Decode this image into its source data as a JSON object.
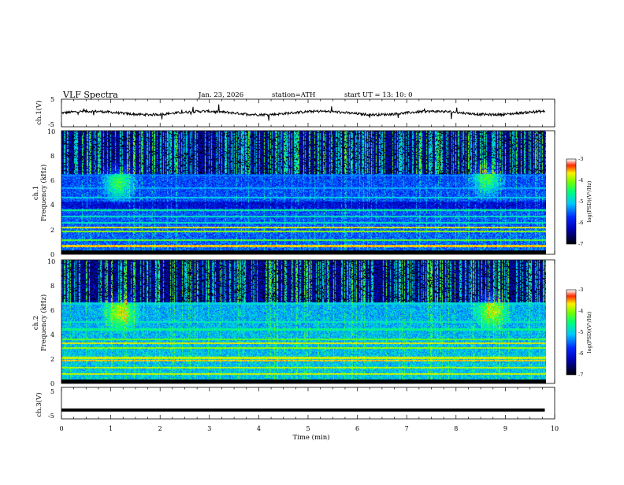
{
  "header": {
    "title": "VLF  Spectra",
    "date": "Jan.  23,  2026",
    "station": "station=ATH",
    "start_time": "start  UT  =   13: 10: 0"
  },
  "chart_data": {
    "type": "heatmap",
    "title": "VLF  Spectra",
    "xlabel": "Time  (min)",
    "xlim": [
      0,
      10
    ],
    "xticks": [
      "0",
      "1",
      "2",
      "3",
      "4",
      "5",
      "6",
      "7",
      "8",
      "9",
      "10"
    ],
    "data_end_min": 9.8,
    "panels": [
      {
        "id": "ch1-waveform",
        "type": "line",
        "ylabel": "ch.1(V)",
        "ylim": [
          -5,
          5
        ],
        "yticks": [
          "5",
          "-5"
        ],
        "baseline_v": 0
      },
      {
        "id": "ch1-spectrogram",
        "type": "heatmap",
        "ylabel_channel": "ch.1",
        "ylabel": "Frequency  (kHz)",
        "ylim": [
          0,
          10
        ],
        "yticks": [
          "0",
          "2",
          "4",
          "6",
          "8",
          "10"
        ],
        "features": [
          {
            "type": "emission",
            "t_center_min": 1.15,
            "f_center_khz": 5.8,
            "width_min": 0.35
          },
          {
            "type": "emission",
            "t_center_min": 8.6,
            "f_center_khz": 6.2,
            "width_min": 0.35
          }
        ]
      },
      {
        "id": "ch2-spectrogram",
        "type": "heatmap",
        "ylabel_channel": "ch.2",
        "ylabel": "Frequency  (kHz)",
        "ylim": [
          0,
          10
        ],
        "yticks": [
          "0",
          "2",
          "4",
          "6",
          "8",
          "10"
        ],
        "features": [
          {
            "type": "emission",
            "t_center_min": 1.2,
            "f_center_khz": 5.8,
            "width_min": 0.35
          },
          {
            "type": "emission",
            "t_center_min": 8.7,
            "f_center_khz": 6.0,
            "width_min": 0.35
          }
        ]
      },
      {
        "id": "ch3-waveform",
        "type": "line",
        "ylabel": "ch.3(V)",
        "ylim": [
          -5,
          5
        ],
        "yticks": [
          "5",
          "-5"
        ],
        "baseline_v": -2.2
      }
    ],
    "colorbar": {
      "label": "log(PSD)(V²/Hz)",
      "range": [
        -7,
        -3
      ],
      "ticks": [
        "-3",
        "-4",
        "-5",
        "-6",
        "-7"
      ]
    },
    "colors": {
      "low": "#000000",
      "mid_low": "#0000ff",
      "mid": "#00c0ff",
      "mid_high": "#00ff00",
      "high": "#ffff00",
      "max": "#ff0000"
    }
  }
}
